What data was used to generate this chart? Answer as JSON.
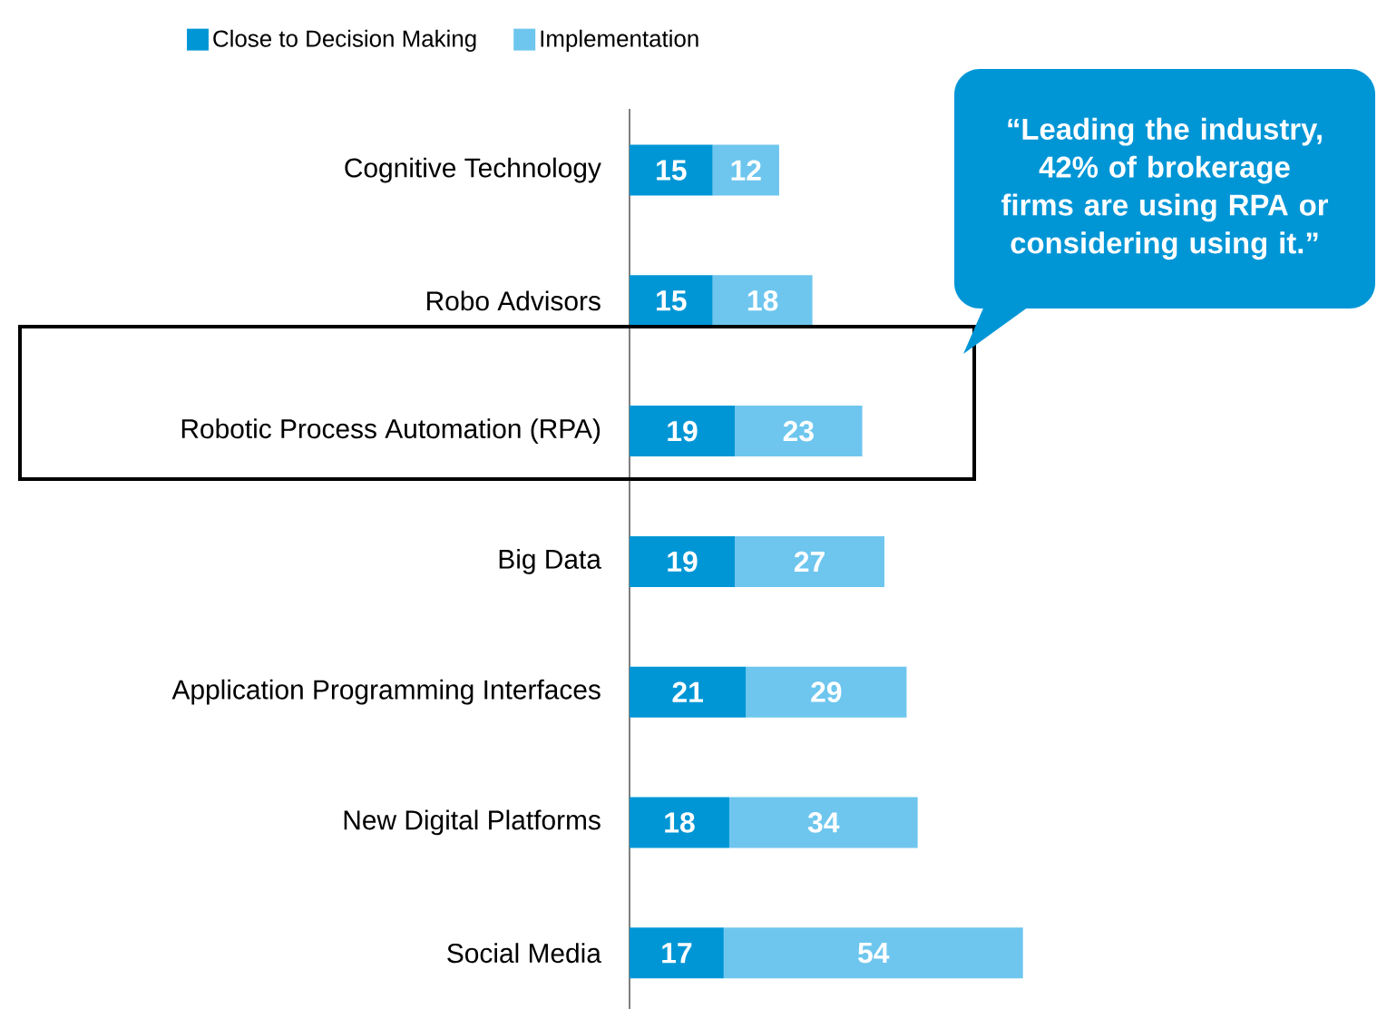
{
  "chart_data": {
    "type": "bar",
    "orientation": "horizontal",
    "stacked": true,
    "data_labels": true,
    "legend": "top left",
    "categories": [
      "Cognitive Technology",
      "Robo Advisors",
      "Robotic Process Automation (RPA)",
      "Big Data",
      "Application Programming Interfaces",
      "New Digital Platforms",
      "Social Media"
    ],
    "series": [
      {
        "name": "Close to Decision Making",
        "color": "#0096d6",
        "values": [
          15,
          15,
          19,
          19,
          21,
          18,
          17
        ]
      },
      {
        "name": "Implementation",
        "color": "#6ec6ee",
        "values": [
          12,
          18,
          23,
          27,
          29,
          34,
          54
        ]
      }
    ],
    "annotations": [
      "“Leading the industry, 42% of brokerage firms are using RPA or considering using it.”"
    ]
  }
}
